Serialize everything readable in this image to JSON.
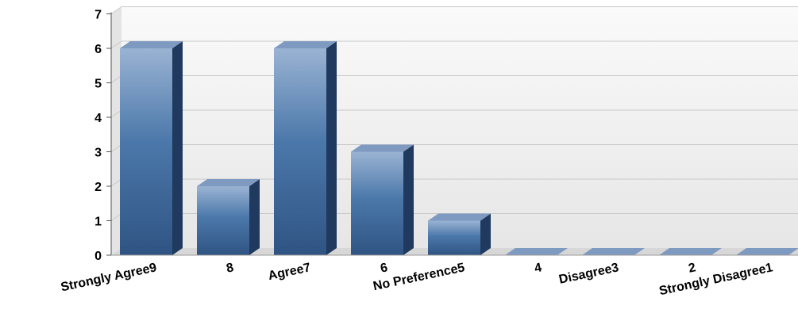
{
  "chart_data": {
    "type": "bar",
    "title": "",
    "xlabel": "",
    "ylabel": "",
    "categories": [
      "Strongly Agree9",
      "8",
      "Agree7",
      "6",
      "No Preference5",
      "4",
      "Disagree3",
      "2",
      "Strongly Disagree1"
    ],
    "values": [
      6,
      2,
      6,
      3,
      1,
      0,
      0,
      0,
      0
    ],
    "ylim": [
      0,
      7
    ],
    "yticks": [
      "0",
      "1",
      "2",
      "3",
      "4",
      "5",
      "6",
      "7"
    ],
    "grid": true,
    "legend": "none",
    "colors": {
      "bar_top": "#8fa9cc",
      "bar_mid": "#4a77a8",
      "bar_bottom": "#2c4f7c",
      "bar_side": "#1f3a5e",
      "bar_cap": "#7f9ac0",
      "grid": "#c8c8c8",
      "plot_bg": "#f0f0f0",
      "floor": "#d7d7d7"
    }
  }
}
